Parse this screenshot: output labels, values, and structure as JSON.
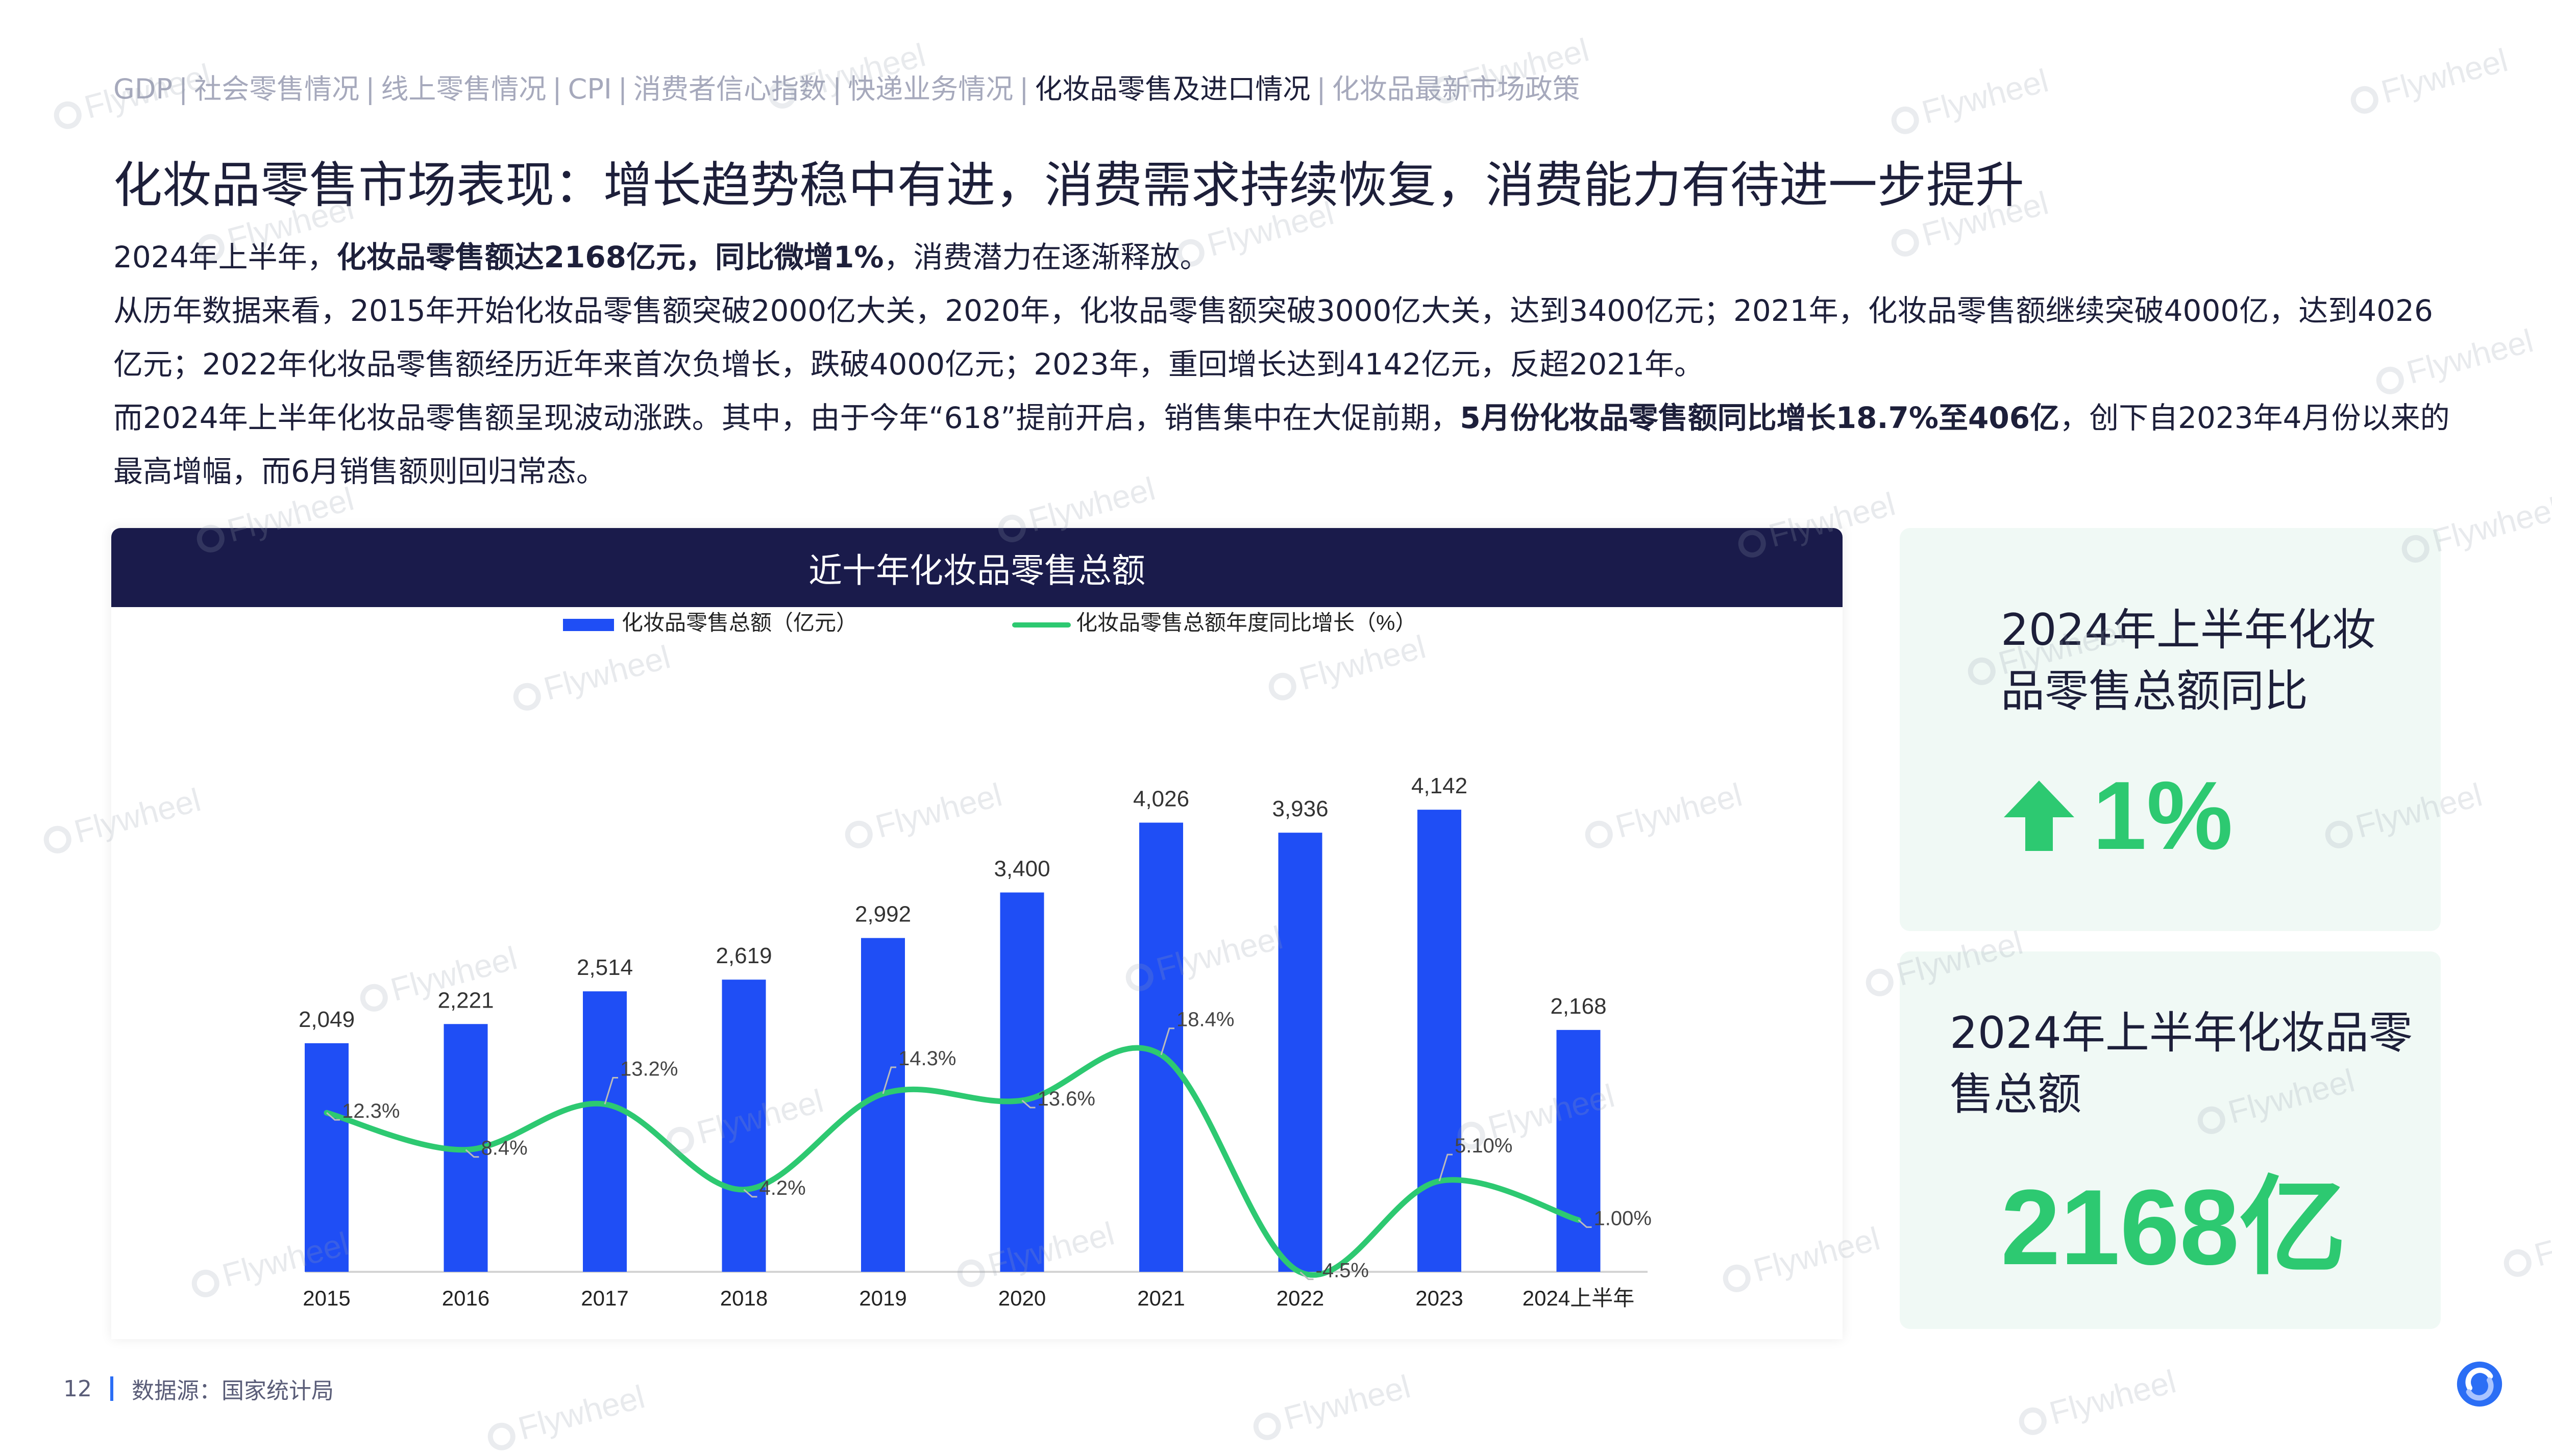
{
  "nav": {
    "items": [
      "GDP",
      "社会零售情况",
      "线上零售情况",
      "CPI",
      "消费者信心指数",
      "快递业务情况",
      "化妆品零售及进口情况",
      "化妆品最新市场政策"
    ],
    "active_index": 6,
    "separator": "|"
  },
  "page_title": "化妆品零售市场表现：增长趋势稳中有进，消费需求持续恢复，消费能力有待进一步提升",
  "body": {
    "p1_a": "2024年上半年，",
    "p1_bold": "化妆品零售额达2168亿元，同比微增1%",
    "p1_b": "，消费潜力在逐渐释放。",
    "p2": "从历年数据来看，2015年开始化妆品零售额突破2000亿大关，2020年，化妆品零售额突破3000亿大关，达到3400亿元；2021年，化妆品零售额继续突破4000亿，达到4026亿元；2022年化妆品零售额经历近年来首次负增长，跌破4000亿元；2023年，重回增长达到4142亿元，反超2021年。",
    "p3_a": "而2024年上半年化妆品零售额呈现波动涨跌。其中，由于今年“618”提前开启，销售集中在大促前期，",
    "p3_bold": "5月份化妆品零售额同比增长18.7%至406亿",
    "p3_b": "，创下自2023年4月份以来的最高增幅，而6月销售额则回归常态。"
  },
  "chart_card": {
    "title": "近十年化妆品零售总额"
  },
  "chart_data": {
    "type": "bar+line",
    "title": "近十年化妆品零售总额",
    "categories": [
      "2015",
      "2016",
      "2017",
      "2018",
      "2019",
      "2020",
      "2021",
      "2022",
      "2023",
      "2024上半年"
    ],
    "series": [
      {
        "name": "化妆品零售总额（亿元）",
        "type": "bar",
        "color": "#1f4ef5",
        "values": [
          2049,
          2221,
          2514,
          2619,
          2992,
          3400,
          4026,
          3936,
          4142,
          2168
        ],
        "labels": [
          "2,049",
          "2,221",
          "2,514",
          "2,619",
          "2,992",
          "3,400",
          "4,026",
          "3,936",
          "4,142",
          "2,168"
        ]
      },
      {
        "name": "化妆品零售总额年度同比增长（%）",
        "type": "line",
        "color": "#2dc971",
        "values": [
          12.3,
          8.4,
          13.2,
          4.2,
          14.3,
          13.6,
          18.4,
          -4.5,
          5.1,
          1.0
        ],
        "labels": [
          "12.3%",
          "8.4%",
          "13.2%",
          "4.2%",
          "14.3%",
          "13.6%",
          "18.4%",
          "-4.5%",
          "5.10%",
          "1.00%"
        ]
      }
    ],
    "legend_position": "top",
    "grid": false
  },
  "kpis": [
    {
      "label": "2024年上半年化妆品零售总额同比",
      "value": "1%",
      "icon": "up-arrow-icon",
      "color": "#2dc971"
    },
    {
      "label": "2024年上半年化妆品零售总额",
      "value": "2168亿",
      "color": "#2dc971"
    }
  ],
  "footer": {
    "page_number": "12",
    "source": "数据源：国家统计局"
  },
  "watermark": {
    "text": "Flywheel"
  }
}
